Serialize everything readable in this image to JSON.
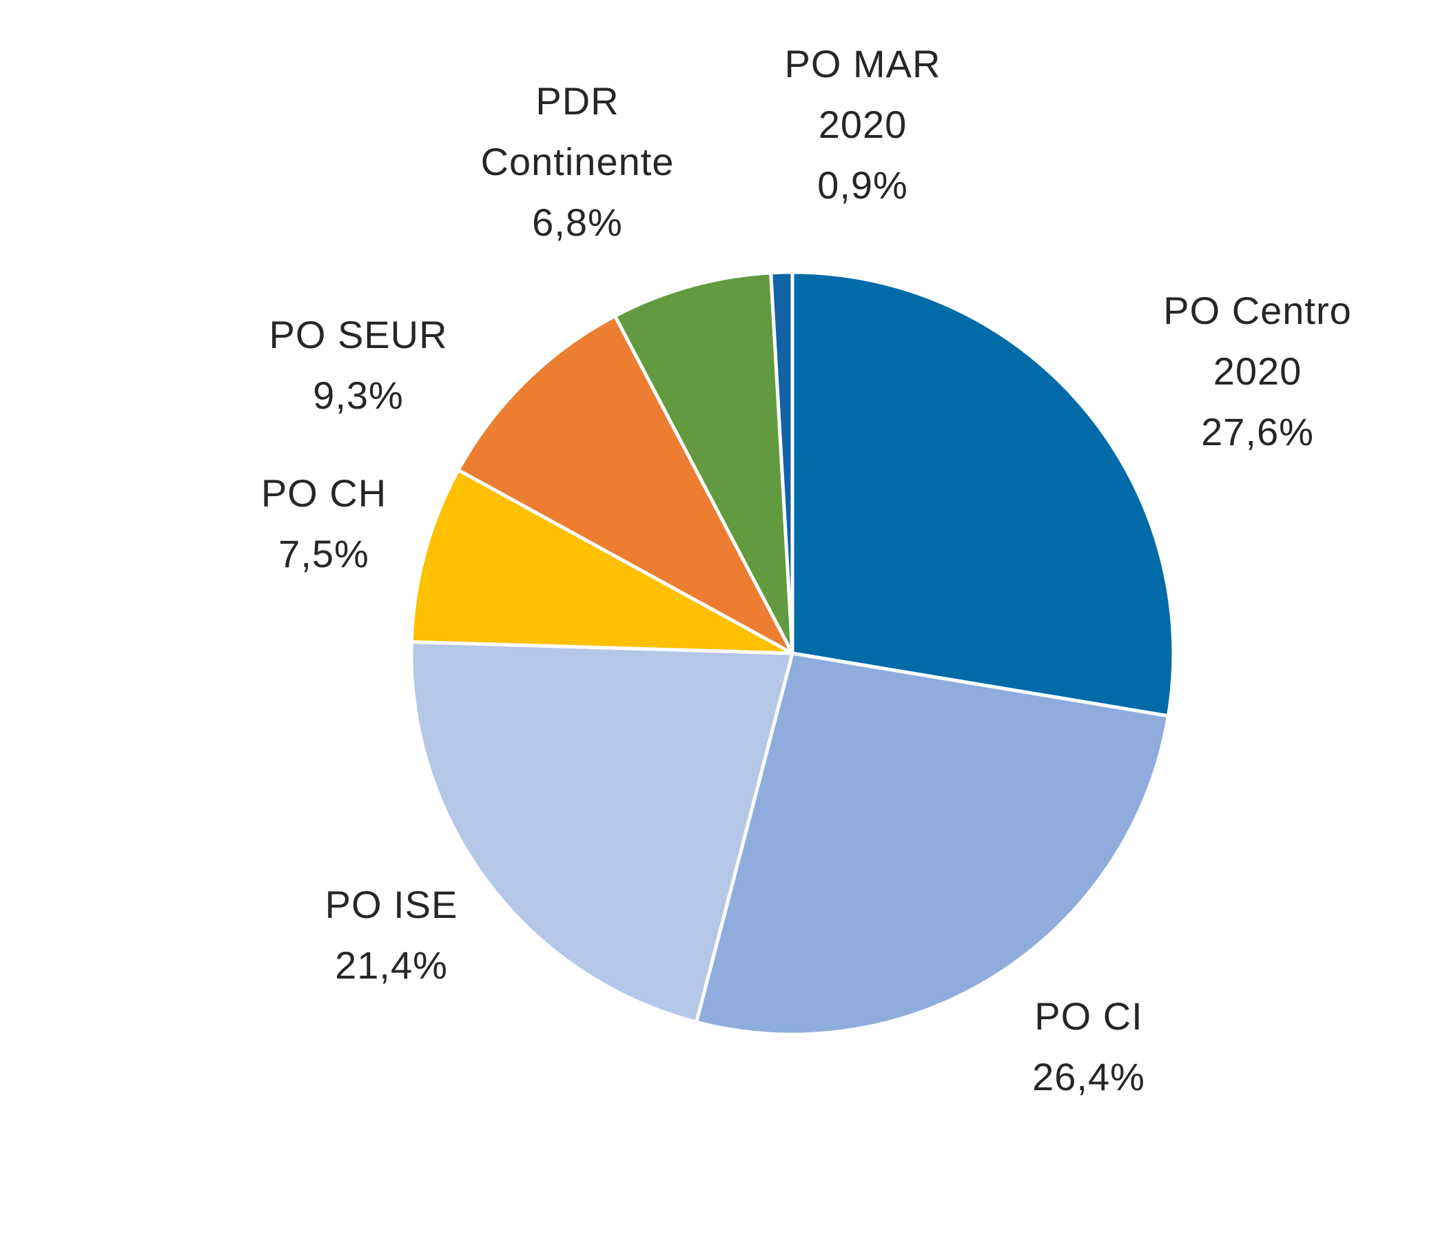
{
  "chart_data": {
    "type": "pie",
    "start_angle_deg": 0,
    "direction": "clockwise",
    "slices": [
      {
        "label_lines": [
          "PO Centro",
          "2020"
        ],
        "percent_label": "27,6%",
        "value": 27.6,
        "color": "#006BA6"
      },
      {
        "label_lines": [
          "PO CI"
        ],
        "percent_label": "26,4%",
        "value": 26.4,
        "color": "#8FACDC"
      },
      {
        "label_lines": [
          "PO ISE"
        ],
        "percent_label": "21,4%",
        "value": 21.4,
        "color": "#B4C7E7"
      },
      {
        "label_lines": [
          "PO CH"
        ],
        "percent_label": "7,5%",
        "value": 7.5,
        "color": "#FFC000"
      },
      {
        "label_lines": [
          "PO SEUR"
        ],
        "percent_label": "9,3%",
        "value": 9.3,
        "color": "#ED7D31"
      },
      {
        "label_lines": [
          "PDR",
          "Continente"
        ],
        "percent_label": "6,8%",
        "value": 6.8,
        "color": "#629A3F"
      },
      {
        "label_lines": [
          "PO MAR",
          "2020"
        ],
        "percent_label": "0,9%",
        "value": 0.9,
        "color": "#1262A8"
      }
    ]
  }
}
